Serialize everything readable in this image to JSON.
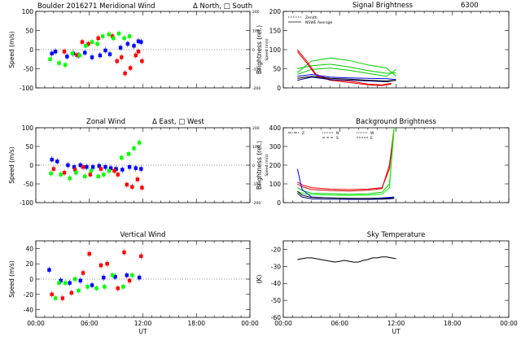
{
  "chart_data": [
    {
      "type": "scatter",
      "panel": "meridional",
      "title": "Boulder   2016271     Meridional Wind",
      "title_extra": "Δ North, □ South",
      "ylabel": "Speed (m/s)",
      "ylabel_right": "Speed (m/s)",
      "ylim": [
        -100,
        100
      ],
      "yticks": [
        100,
        50,
        0,
        -50,
        -100
      ],
      "right_yticks": [
        200,
        100,
        0,
        -100,
        -200
      ],
      "xlim": [
        0,
        24
      ],
      "series": [
        {
          "color": "#0000ff",
          "x": [
            1.8,
            2.2,
            3.5,
            4.2,
            4.8,
            5.5,
            6.3,
            7.2,
            7.8,
            8.3,
            9.5,
            10.3,
            11.0,
            11.5,
            11.8
          ],
          "y": [
            -10,
            -5,
            -18,
            -10,
            -15,
            -8,
            -20,
            -15,
            -2,
            -12,
            5,
            15,
            10,
            22,
            20
          ]
        },
        {
          "color": "#ff0000",
          "x": [
            3.2,
            4.6,
            5.2,
            5.9,
            7.0,
            8.6,
            9.1,
            9.6,
            10.0,
            10.6,
            11.2,
            11.5,
            11.9
          ],
          "y": [
            -5,
            -14,
            20,
            15,
            30,
            35,
            -30,
            -20,
            -62,
            -48,
            -15,
            -5,
            -30
          ]
        },
        {
          "color": "#00ff00",
          "x": [
            1.6,
            2.6,
            3.3,
            4.1,
            4.9,
            5.6,
            6.3,
            6.9,
            7.5,
            8.2,
            8.7,
            9.3,
            9.9,
            10.5
          ],
          "y": [
            -25,
            -35,
            -40,
            -10,
            -15,
            10,
            20,
            15,
            35,
            40,
            30,
            42,
            30,
            35
          ]
        }
      ]
    },
    {
      "type": "line",
      "panel": "signal",
      "title": "Signal Brightness",
      "title_code": "6300",
      "ylabel": "Brightness (rel.)",
      "ylim": [
        0,
        200
      ],
      "yticks": [
        200,
        150,
        100,
        50,
        0
      ],
      "xlim": [
        0,
        24
      ],
      "legend": [
        "Zenith",
        "NSWE Average"
      ],
      "series": [
        {
          "color": "#00cc00",
          "x": [
            1.5,
            3,
            5,
            7,
            9,
            11,
            12
          ],
          "y": [
            40,
            70,
            78,
            72,
            60,
            52,
            30
          ]
        },
        {
          "color": "#00cc00",
          "x": [
            1.5,
            3,
            5,
            7,
            9,
            11,
            12
          ],
          "y": [
            50,
            58,
            62,
            55,
            45,
            38,
            40
          ]
        },
        {
          "color": "#00cc00",
          "x": [
            1.5,
            3,
            5,
            7,
            9,
            11,
            12
          ],
          "y": [
            35,
            48,
            52,
            46,
            38,
            30,
            48
          ]
        },
        {
          "color": "#ff0000",
          "x": [
            1.5,
            2.5,
            3.5,
            5,
            7,
            9,
            10.5,
            11.5
          ],
          "y": [
            100,
            70,
            35,
            22,
            18,
            10,
            8,
            12
          ]
        },
        {
          "color": "#cc0000",
          "x": [
            1.5,
            2.5,
            3.5,
            5,
            7,
            9,
            10.5,
            11.5
          ],
          "y": [
            95,
            65,
            32,
            20,
            14,
            8,
            6,
            10
          ]
        },
        {
          "color": "#0000ff",
          "x": [
            1.5,
            3,
            5,
            7,
            9,
            11,
            12
          ],
          "y": [
            30,
            35,
            28,
            26,
            25,
            24,
            22
          ]
        },
        {
          "color": "#000080",
          "x": [
            1.5,
            3,
            5,
            7,
            9,
            11,
            12
          ],
          "y": [
            20,
            28,
            22,
            20,
            18,
            16,
            20
          ]
        },
        {
          "color": "#000000",
          "x": [
            1.5,
            3,
            5,
            7,
            9,
            11,
            12
          ],
          "y": [
            25,
            30,
            25,
            23,
            20,
            18,
            20
          ]
        }
      ]
    },
    {
      "type": "scatter",
      "panel": "zonal",
      "title": "Zonal Wind",
      "title_extra": "Δ East, □ West",
      "ylabel": "Speed (m/s)",
      "ylabel_right": "Speed (m/s)",
      "ylim": [
        -100,
        100
      ],
      "yticks": [
        100,
        50,
        0,
        -50,
        -100
      ],
      "right_yticks": [
        200,
        100,
        0,
        -100,
        -200
      ],
      "xlim": [
        0,
        24
      ],
      "series": [
        {
          "color": "#0000ff",
          "x": [
            1.8,
            2.4,
            3.6,
            4.3,
            5.0,
            5.7,
            6.4,
            7.1,
            7.8,
            8.4,
            9.0,
            9.7,
            10.5,
            11.2,
            11.8
          ],
          "y": [
            15,
            10,
            0,
            -5,
            0,
            -5,
            -5,
            -2,
            -5,
            -8,
            -10,
            -12,
            -5,
            -8,
            -10
          ]
        },
        {
          "color": "#ff0000",
          "x": [
            2.0,
            3.2,
            4.4,
            5.3,
            6.1,
            7.3,
            8.8,
            9.2,
            10.2,
            10.8,
            11.4,
            11.9
          ],
          "y": [
            -10,
            -20,
            -12,
            -5,
            -25,
            -10,
            -15,
            -25,
            -52,
            -58,
            -38,
            -60
          ]
        },
        {
          "color": "#00ff00",
          "x": [
            1.7,
            2.8,
            3.8,
            4.5,
            5.5,
            6.2,
            7.0,
            7.6,
            8.2,
            9.6,
            10.4,
            11.0,
            11.6
          ],
          "y": [
            -22,
            -25,
            -35,
            -20,
            -30,
            -15,
            -30,
            -25,
            -15,
            20,
            30,
            45,
            60
          ]
        }
      ]
    },
    {
      "type": "line",
      "panel": "background",
      "title": "Background Brightness",
      "ylabel": "Brightness (rel.)",
      "ylim": [
        0,
        400
      ],
      "yticks": [
        400,
        300,
        200,
        100,
        0
      ],
      "xlim": [
        0,
        24
      ],
      "legend": [
        "Z",
        "N",
        "S",
        "W",
        "E"
      ],
      "series": [
        {
          "color": "#ff0000",
          "x": [
            1.5,
            2,
            3,
            5,
            7,
            9,
            10.5,
            11.3,
            11.8
          ],
          "y": [
            110,
            95,
            80,
            72,
            70,
            72,
            80,
            180,
            400
          ]
        },
        {
          "color": "#cc0000",
          "x": [
            1.5,
            2,
            3,
            5,
            7,
            9,
            10.5,
            11.3,
            11.8
          ],
          "y": [
            100,
            85,
            70,
            65,
            62,
            66,
            75,
            200,
            400
          ]
        },
        {
          "color": "#00cc00",
          "x": [
            1.5,
            2,
            3,
            5,
            7,
            9,
            10.5,
            11.3,
            11.8
          ],
          "y": [
            80,
            65,
            50,
            48,
            45,
            47,
            55,
            100,
            400
          ]
        },
        {
          "color": "#00ff00",
          "x": [
            1.5,
            2,
            3,
            5,
            7,
            9,
            10.5,
            11.3,
            11.8
          ],
          "y": [
            60,
            50,
            42,
            40,
            38,
            40,
            45,
            80,
            400
          ]
        },
        {
          "color": "#0000ff",
          "x": [
            1.5,
            2,
            3,
            5,
            7,
            9,
            10.5,
            11.3,
            11.8
          ],
          "y": [
            180,
            70,
            30,
            25,
            22,
            22,
            25,
            28,
            30
          ]
        },
        {
          "color": "#000080",
          "x": [
            1.5,
            2,
            3,
            5,
            7,
            9,
            10.5,
            11.3,
            11.8
          ],
          "y": [
            50,
            30,
            20,
            18,
            17,
            17,
            18,
            20,
            22
          ]
        },
        {
          "color": "#000000",
          "x": [
            1.5,
            2,
            3,
            5,
            7,
            9,
            10.5,
            11.3,
            11.8
          ],
          "y": [
            60,
            40,
            28,
            25,
            23,
            22,
            22,
            24,
            26
          ]
        }
      ]
    },
    {
      "type": "scatter",
      "panel": "vertical",
      "title": "Vertical Wind",
      "ylabel": "Speed (m/s)",
      "xlabel": "UT",
      "ylim": [
        -50,
        50
      ],
      "yticks": [
        40,
        20,
        0,
        -20,
        -40
      ],
      "xlim": [
        0,
        24
      ],
      "xticks": [
        "00:00",
        "06:00",
        "12:00",
        "18:00",
        "00:00"
      ],
      "series": [
        {
          "color": "#0000ff",
          "x": [
            1.5,
            2.8,
            3.8,
            5.0,
            6.3,
            7.6,
            8.9,
            10.2,
            11.6
          ],
          "y": [
            12,
            -2,
            -5,
            -2,
            -8,
            2,
            3,
            5,
            2
          ]
        },
        {
          "color": "#ff0000",
          "x": [
            1.8,
            3.0,
            4.0,
            5.3,
            6.0,
            7.3,
            8.0,
            9.2,
            9.9,
            10.5,
            11.8
          ],
          "y": [
            -20,
            -25,
            -18,
            8,
            33,
            18,
            20,
            -12,
            35,
            -2,
            30
          ]
        },
        {
          "color": "#00ff00",
          "x": [
            2.2,
            2.6,
            3.3,
            4.4,
            4.8,
            5.8,
            6.8,
            7.7,
            8.6,
            9.8,
            10.8
          ],
          "y": [
            -25,
            -5,
            -5,
            0,
            -15,
            -10,
            -12,
            -10,
            5,
            -10,
            5
          ]
        }
      ]
    },
    {
      "type": "line",
      "panel": "sky",
      "title": "Sky Temperature",
      "ylabel": "(K)",
      "xlabel": "UT",
      "ylim": [
        -60,
        -15
      ],
      "yticks": [
        -20,
        -30,
        -40,
        -50,
        -60
      ],
      "xlim": [
        0,
        24
      ],
      "xticks": [
        "00:00",
        "06:00",
        "12:00",
        "18:00",
        "00:00"
      ],
      "series": [
        {
          "color": "#000000",
          "x": [
            1.5,
            2.0,
            2.5,
            3.0,
            3.5,
            4.0,
            4.5,
            5.0,
            5.5,
            6.0,
            6.5,
            7.0,
            7.5,
            8.0,
            8.5,
            9.0,
            9.5,
            10.0,
            10.5,
            11.0,
            11.5,
            12.0
          ],
          "y": [
            -26,
            -25.5,
            -25,
            -25,
            -25.5,
            -26,
            -26.5,
            -27,
            -27.5,
            -27,
            -26.5,
            -27,
            -27.5,
            -27.5,
            -26.5,
            -26,
            -25,
            -25,
            -24.5,
            -24.5,
            -25,
            -25.5
          ]
        }
      ]
    }
  ]
}
